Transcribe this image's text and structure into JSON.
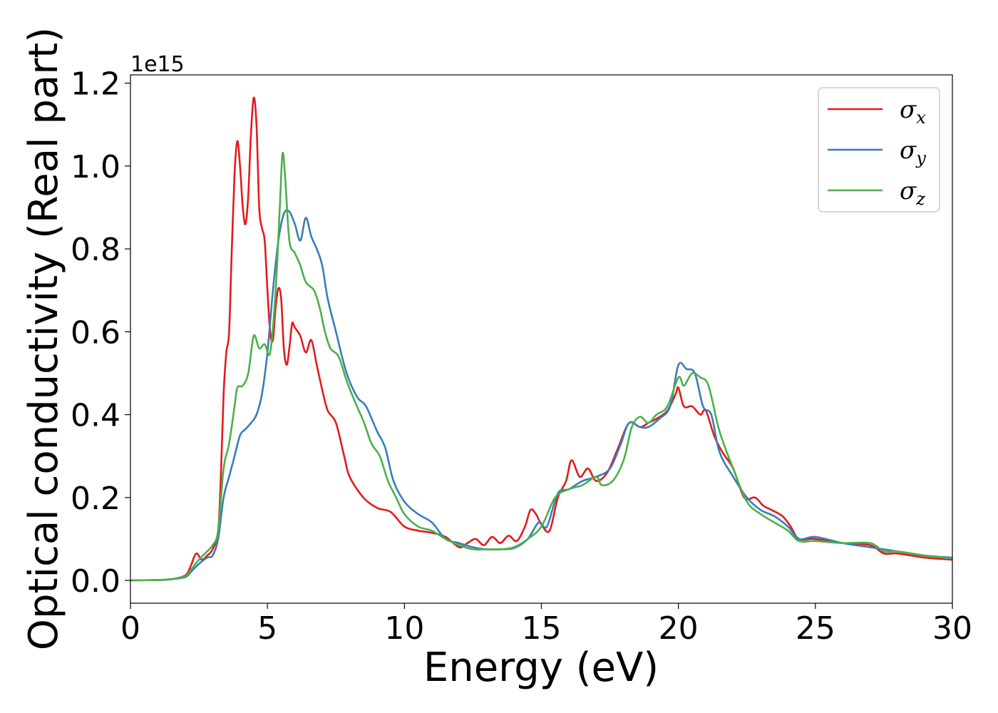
{
  "chart_data": {
    "type": "line",
    "xlabel": "Energy (eV)",
    "ylabel": "Optical conductivity (Real part)",
    "y_offset_label": "1e15",
    "xlim": [
      0,
      30
    ],
    "ylim": [
      -0.055,
      1.22
    ],
    "x_ticks": [
      0,
      5,
      10,
      15,
      20,
      25,
      30
    ],
    "y_ticks": [
      0.0,
      0.2,
      0.4,
      0.6,
      0.8,
      1.0,
      1.2
    ],
    "y_tick_labels": [
      "0.0",
      "0.2",
      "0.4",
      "0.6",
      "0.8",
      "1.0",
      "1.2"
    ],
    "x_tick_labels": [
      "0",
      "5",
      "10",
      "15",
      "20",
      "25",
      "30"
    ],
    "grid": false,
    "legend_position": "top-right",
    "series": [
      {
        "name": "σx",
        "symbol": "σ",
        "subscript": "x",
        "color": "#e41a1c",
        "points": [
          [
            0,
            0.0
          ],
          [
            1,
            0.001
          ],
          [
            1.5,
            0.003
          ],
          [
            2,
            0.012
          ],
          [
            2.2,
            0.035
          ],
          [
            2.4,
            0.065
          ],
          [
            2.6,
            0.05
          ],
          [
            2.8,
            0.06
          ],
          [
            3.0,
            0.075
          ],
          [
            3.2,
            0.12
          ],
          [
            3.3,
            0.25
          ],
          [
            3.4,
            0.45
          ],
          [
            3.5,
            0.55
          ],
          [
            3.6,
            0.6
          ],
          [
            3.7,
            0.8
          ],
          [
            3.8,
            0.98
          ],
          [
            3.9,
            1.06
          ],
          [
            4.0,
            1.0
          ],
          [
            4.1,
            0.9
          ],
          [
            4.2,
            0.86
          ],
          [
            4.3,
            0.93
          ],
          [
            4.4,
            1.08
          ],
          [
            4.5,
            1.165
          ],
          [
            4.6,
            1.1
          ],
          [
            4.7,
            0.9
          ],
          [
            4.8,
            0.85
          ],
          [
            4.9,
            0.82
          ],
          [
            5.0,
            0.7
          ],
          [
            5.1,
            0.6
          ],
          [
            5.2,
            0.58
          ],
          [
            5.3,
            0.66
          ],
          [
            5.4,
            0.705
          ],
          [
            5.5,
            0.68
          ],
          [
            5.6,
            0.56
          ],
          [
            5.7,
            0.52
          ],
          [
            5.8,
            0.56
          ],
          [
            5.9,
            0.62
          ],
          [
            6.0,
            0.61
          ],
          [
            6.2,
            0.59
          ],
          [
            6.4,
            0.55
          ],
          [
            6.6,
            0.58
          ],
          [
            6.8,
            0.52
          ],
          [
            7.0,
            0.46
          ],
          [
            7.2,
            0.41
          ],
          [
            7.5,
            0.38
          ],
          [
            7.8,
            0.3
          ],
          [
            8.0,
            0.25
          ],
          [
            8.5,
            0.2
          ],
          [
            9.0,
            0.175
          ],
          [
            9.5,
            0.165
          ],
          [
            10.0,
            0.13
          ],
          [
            10.5,
            0.12
          ],
          [
            11.0,
            0.115
          ],
          [
            11.5,
            0.105
          ],
          [
            12.0,
            0.08
          ],
          [
            12.3,
            0.09
          ],
          [
            12.6,
            0.1
          ],
          [
            12.9,
            0.085
          ],
          [
            13.2,
            0.105
          ],
          [
            13.5,
            0.09
          ],
          [
            13.8,
            0.108
          ],
          [
            14.1,
            0.095
          ],
          [
            14.4,
            0.13
          ],
          [
            14.6,
            0.17
          ],
          [
            14.8,
            0.16
          ],
          [
            15.0,
            0.135
          ],
          [
            15.3,
            0.12
          ],
          [
            15.6,
            0.2
          ],
          [
            15.9,
            0.24
          ],
          [
            16.1,
            0.29
          ],
          [
            16.4,
            0.25
          ],
          [
            16.7,
            0.27
          ],
          [
            17.0,
            0.24
          ],
          [
            17.4,
            0.26
          ],
          [
            17.8,
            0.32
          ],
          [
            18.2,
            0.38
          ],
          [
            18.6,
            0.37
          ],
          [
            18.9,
            0.38
          ],
          [
            19.2,
            0.39
          ],
          [
            19.6,
            0.41
          ],
          [
            19.9,
            0.45
          ],
          [
            20.0,
            0.465
          ],
          [
            20.2,
            0.42
          ],
          [
            20.5,
            0.42
          ],
          [
            20.8,
            0.4
          ],
          [
            21.0,
            0.41
          ],
          [
            21.3,
            0.35
          ],
          [
            21.6,
            0.31
          ],
          [
            22.0,
            0.27
          ],
          [
            22.4,
            0.2
          ],
          [
            22.8,
            0.2
          ],
          [
            23.1,
            0.18
          ],
          [
            23.4,
            0.17
          ],
          [
            23.8,
            0.155
          ],
          [
            24.1,
            0.13
          ],
          [
            24.4,
            0.1
          ],
          [
            25.0,
            0.1
          ],
          [
            26.0,
            0.09
          ],
          [
            27.0,
            0.085
          ],
          [
            27.5,
            0.065
          ],
          [
            28.0,
            0.065
          ],
          [
            29.0,
            0.055
          ],
          [
            30.0,
            0.05
          ]
        ]
      },
      {
        "name": "σy",
        "symbol": "σ",
        "subscript": "y",
        "color": "#377eb8",
        "points": [
          [
            0,
            0.0
          ],
          [
            1,
            0.001
          ],
          [
            1.5,
            0.003
          ],
          [
            2,
            0.008
          ],
          [
            2.2,
            0.02
          ],
          [
            2.5,
            0.04
          ],
          [
            2.8,
            0.055
          ],
          [
            3.0,
            0.06
          ],
          [
            3.2,
            0.1
          ],
          [
            3.4,
            0.2
          ],
          [
            3.6,
            0.25
          ],
          [
            3.8,
            0.3
          ],
          [
            4.0,
            0.35
          ],
          [
            4.2,
            0.365
          ],
          [
            4.4,
            0.38
          ],
          [
            4.6,
            0.4
          ],
          [
            4.8,
            0.45
          ],
          [
            5.0,
            0.55
          ],
          [
            5.2,
            0.7
          ],
          [
            5.4,
            0.82
          ],
          [
            5.6,
            0.885
          ],
          [
            5.8,
            0.89
          ],
          [
            6.0,
            0.86
          ],
          [
            6.2,
            0.82
          ],
          [
            6.4,
            0.875
          ],
          [
            6.6,
            0.83
          ],
          [
            6.8,
            0.8
          ],
          [
            7.0,
            0.76
          ],
          [
            7.2,
            0.68
          ],
          [
            7.5,
            0.6
          ],
          [
            7.8,
            0.52
          ],
          [
            8.0,
            0.48
          ],
          [
            8.3,
            0.44
          ],
          [
            8.6,
            0.42
          ],
          [
            9.0,
            0.36
          ],
          [
            9.3,
            0.32
          ],
          [
            9.6,
            0.24
          ],
          [
            10.0,
            0.19
          ],
          [
            10.5,
            0.16
          ],
          [
            11.0,
            0.14
          ],
          [
            11.5,
            0.1
          ],
          [
            12.0,
            0.09
          ],
          [
            12.5,
            0.08
          ],
          [
            13.0,
            0.075
          ],
          [
            13.5,
            0.075
          ],
          [
            14.0,
            0.078
          ],
          [
            14.5,
            0.1
          ],
          [
            14.9,
            0.14
          ],
          [
            15.2,
            0.13
          ],
          [
            15.6,
            0.21
          ],
          [
            16.0,
            0.22
          ],
          [
            16.5,
            0.24
          ],
          [
            17.0,
            0.25
          ],
          [
            17.5,
            0.27
          ],
          [
            17.9,
            0.33
          ],
          [
            18.2,
            0.38
          ],
          [
            18.6,
            0.37
          ],
          [
            18.9,
            0.37
          ],
          [
            19.3,
            0.39
          ],
          [
            19.7,
            0.42
          ],
          [
            20.0,
            0.52
          ],
          [
            20.3,
            0.51
          ],
          [
            20.6,
            0.5
          ],
          [
            20.9,
            0.42
          ],
          [
            21.2,
            0.4
          ],
          [
            21.5,
            0.31
          ],
          [
            22.0,
            0.25
          ],
          [
            22.5,
            0.2
          ],
          [
            23.0,
            0.17
          ],
          [
            23.5,
            0.155
          ],
          [
            24.0,
            0.13
          ],
          [
            24.4,
            0.1
          ],
          [
            25.0,
            0.105
          ],
          [
            26.0,
            0.09
          ],
          [
            27.0,
            0.08
          ],
          [
            28.0,
            0.07
          ],
          [
            29.0,
            0.06
          ],
          [
            30.0,
            0.055
          ]
        ]
      },
      {
        "name": "σz",
        "symbol": "σ",
        "subscript": "z",
        "color": "#4daf4a",
        "points": [
          [
            0,
            0.0
          ],
          [
            1,
            0.001
          ],
          [
            1.5,
            0.003
          ],
          [
            2,
            0.01
          ],
          [
            2.2,
            0.025
          ],
          [
            2.5,
            0.05
          ],
          [
            2.8,
            0.07
          ],
          [
            3.0,
            0.085
          ],
          [
            3.2,
            0.12
          ],
          [
            3.4,
            0.27
          ],
          [
            3.6,
            0.33
          ],
          [
            3.8,
            0.42
          ],
          [
            3.9,
            0.465
          ],
          [
            4.1,
            0.47
          ],
          [
            4.3,
            0.5
          ],
          [
            4.5,
            0.59
          ],
          [
            4.7,
            0.56
          ],
          [
            4.9,
            0.57
          ],
          [
            5.1,
            0.55
          ],
          [
            5.3,
            0.7
          ],
          [
            5.45,
            0.9
          ],
          [
            5.55,
            1.03
          ],
          [
            5.65,
            0.97
          ],
          [
            5.8,
            0.82
          ],
          [
            6.0,
            0.79
          ],
          [
            6.2,
            0.76
          ],
          [
            6.4,
            0.72
          ],
          [
            6.7,
            0.7
          ],
          [
            6.9,
            0.66
          ],
          [
            7.1,
            0.6
          ],
          [
            7.3,
            0.56
          ],
          [
            7.6,
            0.54
          ],
          [
            7.9,
            0.48
          ],
          [
            8.2,
            0.43
          ],
          [
            8.5,
            0.385
          ],
          [
            8.8,
            0.33
          ],
          [
            9.1,
            0.3
          ],
          [
            9.4,
            0.24
          ],
          [
            9.7,
            0.2
          ],
          [
            10.0,
            0.16
          ],
          [
            10.5,
            0.13
          ],
          [
            11.0,
            0.12
          ],
          [
            11.5,
            0.1
          ],
          [
            12.0,
            0.085
          ],
          [
            12.5,
            0.075
          ],
          [
            13.0,
            0.075
          ],
          [
            13.5,
            0.075
          ],
          [
            14.0,
            0.08
          ],
          [
            14.5,
            0.1
          ],
          [
            15.0,
            0.13
          ],
          [
            15.5,
            0.2
          ],
          [
            16.0,
            0.22
          ],
          [
            16.5,
            0.23
          ],
          [
            17.0,
            0.25
          ],
          [
            17.2,
            0.23
          ],
          [
            17.6,
            0.24
          ],
          [
            18.0,
            0.29
          ],
          [
            18.3,
            0.37
          ],
          [
            18.6,
            0.395
          ],
          [
            18.9,
            0.38
          ],
          [
            19.2,
            0.4
          ],
          [
            19.6,
            0.42
          ],
          [
            20.0,
            0.49
          ],
          [
            20.2,
            0.47
          ],
          [
            20.5,
            0.5
          ],
          [
            20.8,
            0.49
          ],
          [
            21.1,
            0.47
          ],
          [
            21.5,
            0.36
          ],
          [
            22.0,
            0.27
          ],
          [
            22.5,
            0.19
          ],
          [
            23.0,
            0.16
          ],
          [
            23.5,
            0.14
          ],
          [
            24.0,
            0.12
          ],
          [
            24.4,
            0.095
          ],
          [
            25.0,
            0.095
          ],
          [
            26.0,
            0.09
          ],
          [
            27.0,
            0.09
          ],
          [
            27.5,
            0.07
          ],
          [
            28.0,
            0.07
          ],
          [
            29.0,
            0.06
          ],
          [
            30.0,
            0.053
          ]
        ]
      }
    ]
  }
}
